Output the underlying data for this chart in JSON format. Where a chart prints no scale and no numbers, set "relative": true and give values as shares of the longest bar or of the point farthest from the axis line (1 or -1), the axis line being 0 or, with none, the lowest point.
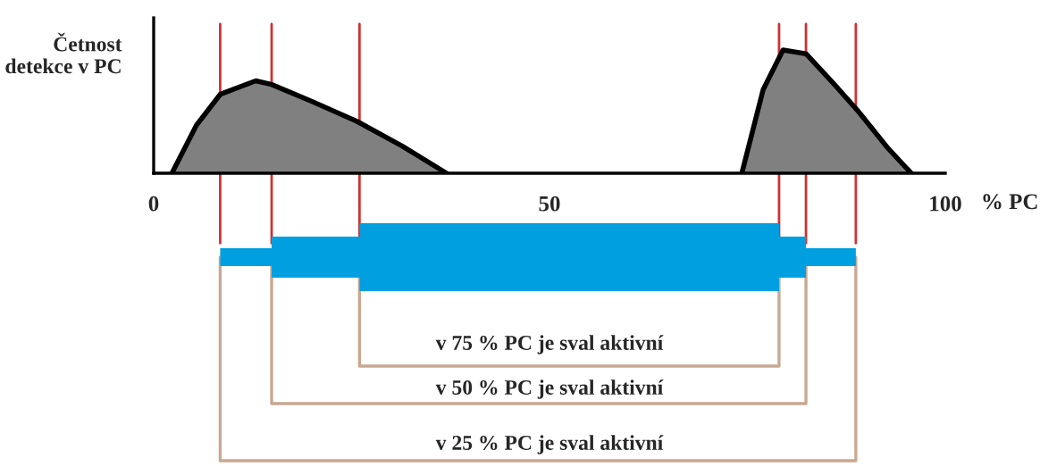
{
  "chart_data": {
    "type": "area",
    "ylabel": "Četnost detekce v PC",
    "xlabel": "% PC",
    "relative": true,
    "xlim": [
      0,
      100
    ],
    "xticks": [
      0,
      50,
      100
    ],
    "tick_labels": "x",
    "grid": false,
    "legend": false,
    "series": [
      {
        "color": "#808080",
        "x": [
          2.3,
          5.4,
          8.4,
          12.9,
          14.9,
          20.1,
          25.7,
          31.4,
          37.0
        ],
        "values": [
          0,
          0.39,
          0.64,
          0.75,
          0.72,
          0.58,
          0.42,
          0.22,
          0
        ]
      },
      {
        "color": "#808080",
        "x": [
          74.3,
          77.0,
          79.5,
          82.4,
          86.0,
          88.9,
          92.8,
          95.7
        ],
        "values": [
          0,
          0.68,
          1.0,
          0.97,
          0.72,
          0.51,
          0.2,
          0
        ]
      }
    ],
    "ref_lines": [
      {
        "axis": "x",
        "value": 8.4,
        "color": "#cc3333"
      },
      {
        "axis": "x",
        "value": 14.9,
        "color": "#cc3333"
      },
      {
        "axis": "x",
        "value": 26,
        "color": "#cc3333"
      },
      {
        "axis": "x",
        "value": 79,
        "color": "#cc3333"
      },
      {
        "axis": "x",
        "value": 82.4,
        "color": "#cc3333"
      },
      {
        "axis": "x",
        "value": 88.7,
        "color": "#cc3333"
      }
    ],
    "annotations": [
      "v 75 % PC je sval aktivní",
      "v 50 % PC je sval aktivní",
      "v 25 % PC je sval aktivní"
    ]
  }
}
